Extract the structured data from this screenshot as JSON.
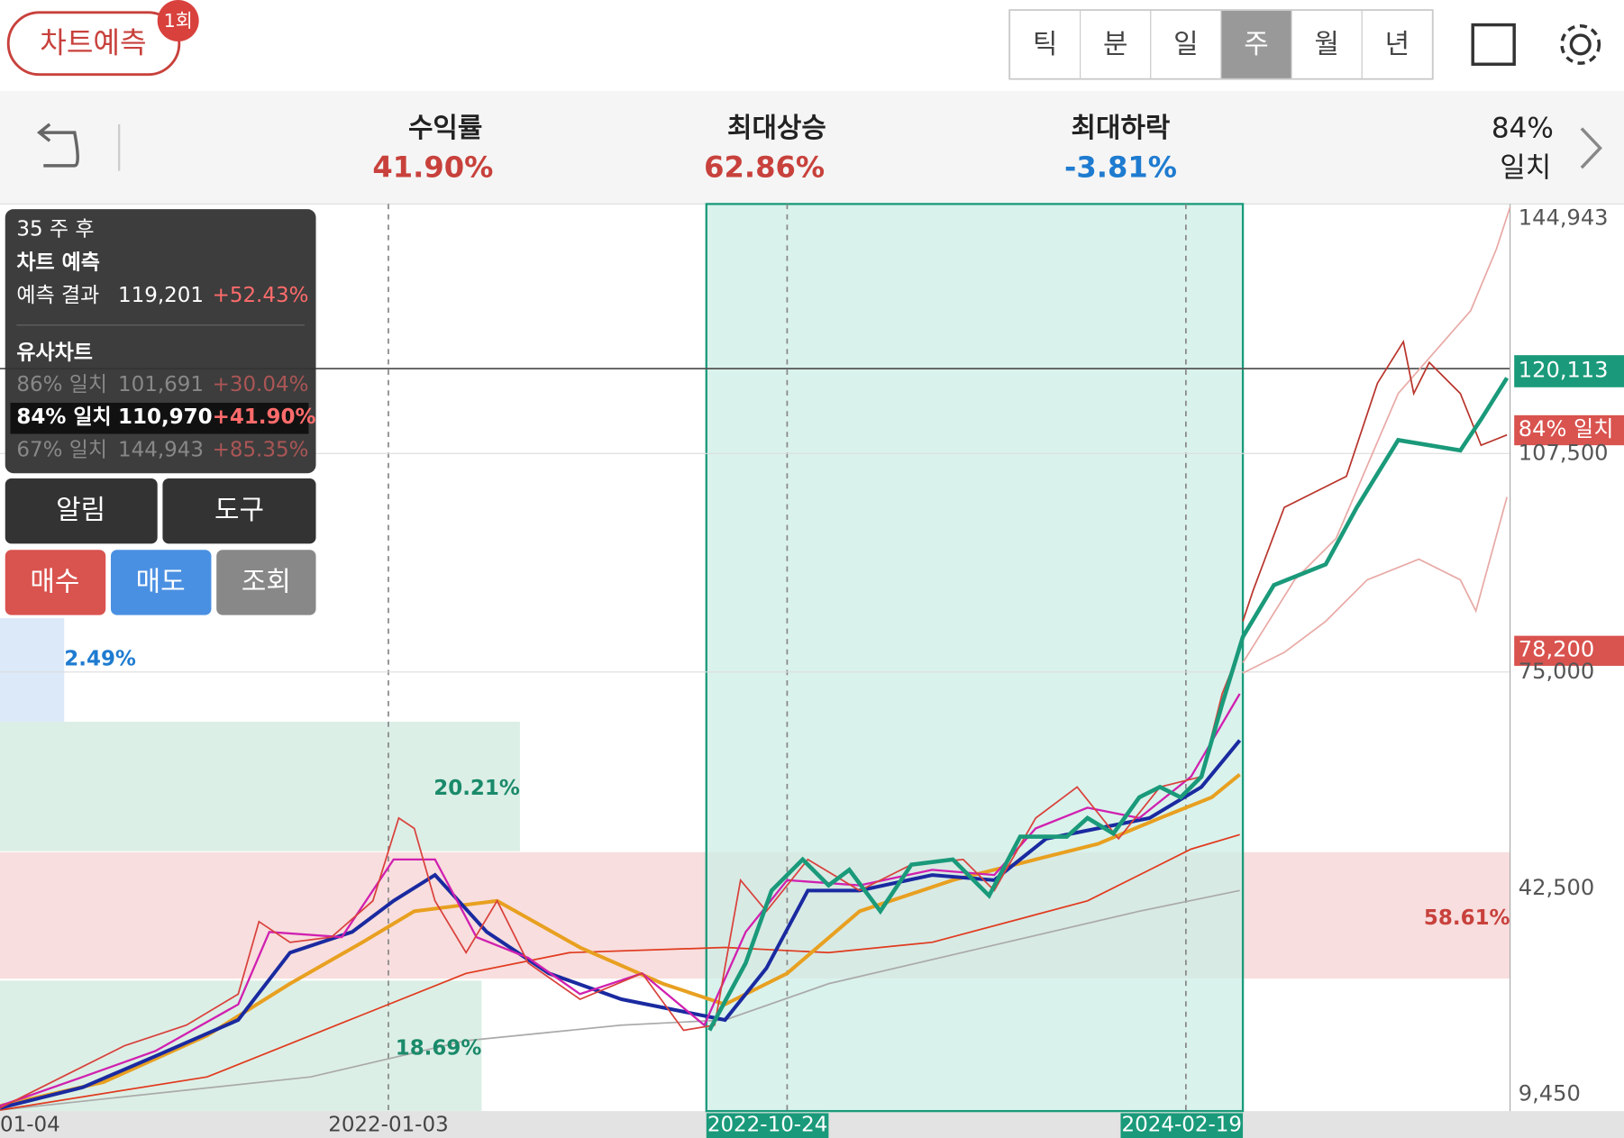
{
  "header": {
    "predict_button": "차트예측",
    "badge": "1회",
    "tabs": [
      "틱",
      "분",
      "일",
      "주",
      "월",
      "년"
    ],
    "selected_tab": "주"
  },
  "summary": {
    "items": [
      {
        "label": "수익률",
        "value": "41.90%"
      },
      {
        "label": "최대상승",
        "value": "62.86%"
      },
      {
        "label": "최대하락",
        "value": "-3.81%"
      }
    ],
    "match": {
      "value": "84%",
      "label": "일치"
    }
  },
  "popup": {
    "period": "35 주 후",
    "title": "차트 예측",
    "result": {
      "label": "예측 결과",
      "price": "119,201",
      "change": "+52.43%"
    },
    "similar_title": "유사차트",
    "similar": [
      {
        "match": "86% 일치",
        "price": "101,691",
        "change": "+30.04%"
      },
      {
        "match": "84% 일치",
        "price": "110,970",
        "change": "+41.90%"
      },
      {
        "match": "67% 일치",
        "price": "144,943",
        "change": "+85.35%"
      }
    ]
  },
  "buttons": [
    "알림",
    "도구",
    "매수",
    "매도",
    "조회"
  ],
  "chart": {
    "zone_labels": [
      "2.49%",
      "20.21%",
      "18.69%",
      "58.61%"
    ],
    "y_axis_labels": [
      "144,943",
      "107,500",
      "75,000",
      "42,500",
      "9,450"
    ],
    "price_tags": [
      "120,113",
      "84% 일치",
      "78,200"
    ],
    "x_axis_labels": [
      "01-04",
      "2022-01-03",
      "2022-10-24",
      "2024-02-19"
    ]
  }
}
